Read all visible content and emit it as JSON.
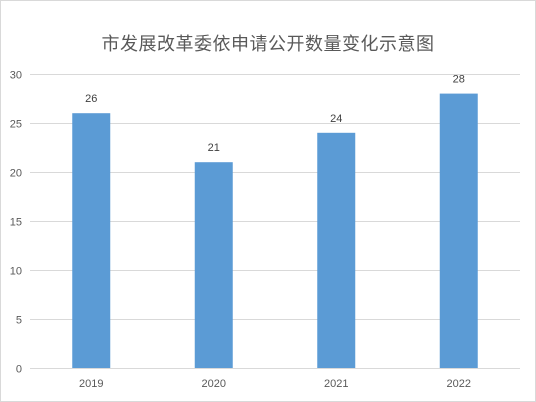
{
  "chart_data": {
    "type": "bar",
    "title": "市发展改革委依申请公开数量变化示意图",
    "categories": [
      "2019",
      "2020",
      "2021",
      "2022"
    ],
    "values": [
      26,
      21,
      24,
      28
    ],
    "data_labels": [
      "26",
      "21",
      "24",
      "28"
    ],
    "ylim": [
      0,
      30
    ],
    "yticks": [
      "0",
      "5",
      "10",
      "15",
      "20",
      "25",
      "30"
    ],
    "xlabel": "",
    "ylabel": "",
    "grid": true,
    "legend": "none",
    "bar_color": "#5b9bd5",
    "grid_color": "#d9d9d9"
  }
}
